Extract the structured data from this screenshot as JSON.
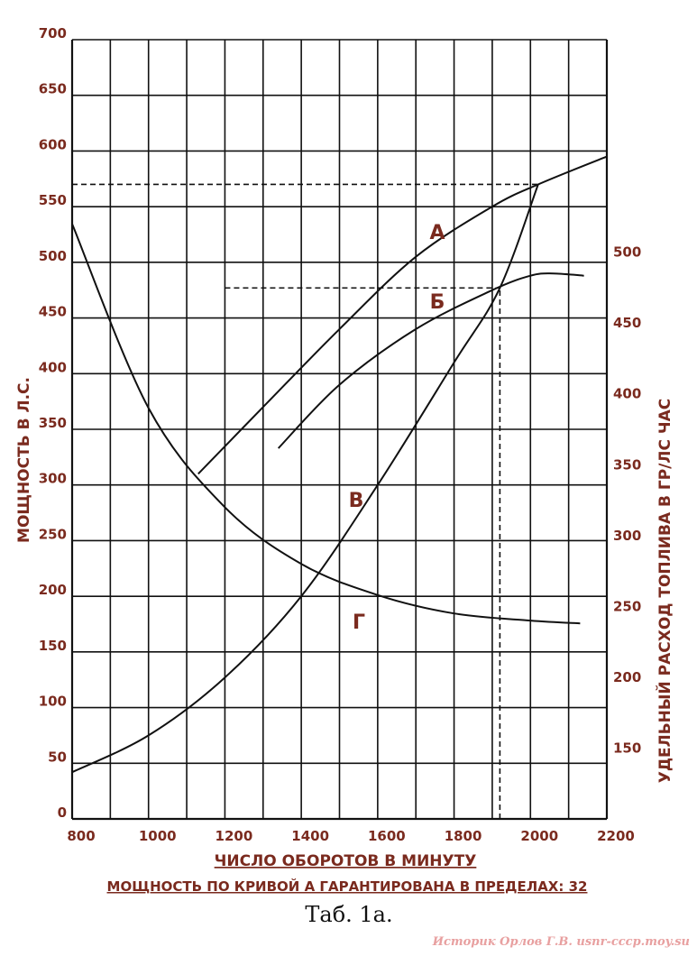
{
  "chart_data": {
    "type": "line",
    "x_ticks": [
      "800",
      "1000",
      "1200",
      "1400",
      "1600",
      "1800",
      "2000",
      "2200"
    ],
    "xlim": [
      800,
      2200
    ],
    "y_left_ticks": [
      "0",
      "50",
      "100",
      "150",
      "200",
      "250",
      "300",
      "350",
      "400",
      "450",
      "500",
      "550",
      "600",
      "650",
      "700"
    ],
    "ylim_left": [
      0,
      700
    ],
    "y_right_ticks": [
      "150",
      "200",
      "250",
      "300",
      "350",
      "400",
      "450",
      "500"
    ],
    "ylim_right": [
      100,
      650
    ],
    "ylabel_left": "МОЩНОСТЬ В Л.С.",
    "ylabel_right": "УДЕЛЬНЫЙ РАСХОД ТОПЛИВА В ГР/ЛС ЧАС",
    "xlabel": "ЧИСЛО ОБОРОТОВ В МИНУТУ",
    "grid": true,
    "series": [
      {
        "name": "А",
        "axis": "left",
        "x": [
          1130,
          1300,
          1500,
          1700,
          1900,
          2020,
          2200
        ],
        "y": [
          310,
          370,
          440,
          505,
          550,
          570,
          595
        ]
      },
      {
        "name": "Б",
        "axis": "left",
        "x": [
          1340,
          1500,
          1700,
          1900,
          2000,
          2060,
          2140
        ],
        "y": [
          333,
          390,
          440,
          475,
          488,
          490,
          488
        ]
      },
      {
        "name": "В",
        "axis": "left",
        "x": [
          800,
          1000,
          1200,
          1400,
          1600,
          1800,
          1920,
          2020
        ],
        "y": [
          42,
          75,
          127,
          200,
          300,
          410,
          477,
          570
        ]
      },
      {
        "name": "Г",
        "axis": "right",
        "x": [
          800,
          1000,
          1200,
          1400,
          1600,
          1800,
          2000,
          2130
        ],
        "y": [
          520,
          390,
          320,
          280,
          258,
          245,
          240,
          238
        ]
      }
    ],
    "reference_lines": [
      {
        "type": "horizontal",
        "axis": "left",
        "y": 570,
        "x_from": 800,
        "x_to": 2020
      },
      {
        "type": "horizontal",
        "axis": "left",
        "y": 477,
        "x_from": 1200,
        "x_to": 1920
      },
      {
        "type": "vertical",
        "x": 1920,
        "y_from": 0,
        "y_to": 477
      }
    ]
  },
  "bottom_note": "МОЩНОСТЬ ПО КРИВОЙ А ГАРАНТИРОВАНА В ПРЕДЕЛАХ: 32",
  "caption": "Таб. 1а.",
  "watermark": "Историк Орлов Г.В. usnr-cccp.moy.su",
  "colors": {
    "text": "#7a2a1e",
    "grid": "#111111",
    "curve": "#111111",
    "caption": "#111111",
    "watermark": "#e8a0a0"
  }
}
